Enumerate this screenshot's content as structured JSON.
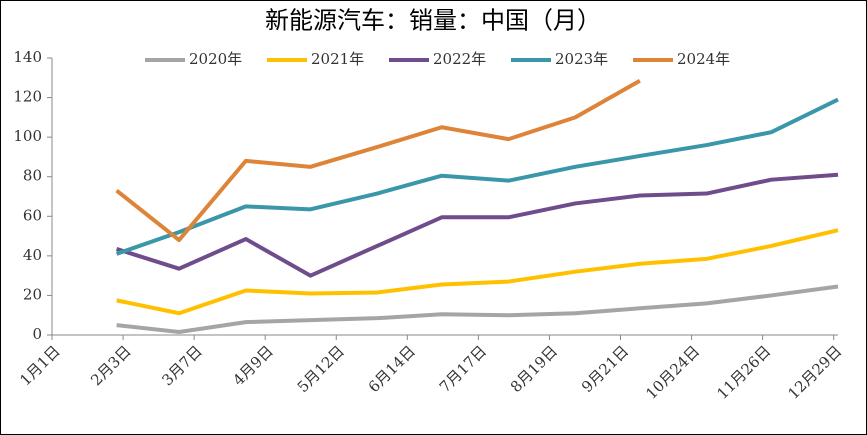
{
  "chart_data": {
    "type": "line",
    "title": "新能源汽车：销量：中国（月）",
    "x": [
      31,
      60,
      91,
      121,
      152,
      182,
      213,
      244,
      274,
      305,
      335,
      366
    ],
    "series": [
      {
        "name": "2020年",
        "color": "#a5a5a5",
        "values": [
          5,
          1.5,
          6.5,
          7.5,
          8.5,
          10.5,
          10,
          11,
          13.5,
          16,
          20,
          24.5
        ]
      },
      {
        "name": "2021年",
        "color": "#ffc000",
        "values": [
          17.5,
          11,
          22.5,
          21,
          21.5,
          25.5,
          27,
          32,
          36,
          38.5,
          45,
          53
        ]
      },
      {
        "name": "2022年",
        "color": "#6f4c8b",
        "values": [
          43.5,
          33.5,
          48.5,
          30,
          45,
          59.5,
          59.5,
          66.5,
          70.5,
          71.5,
          78.5,
          81
        ]
      },
      {
        "name": "2023年",
        "color": "#3a97a9",
        "values": [
          41,
          52,
          65,
          63.5,
          71.5,
          80.5,
          78,
          85,
          90.5,
          96,
          102.5,
          119
        ]
      },
      {
        "name": "2024年",
        "color": "#dd8439",
        "values": [
          73,
          48,
          88,
          85,
          95,
          105,
          99,
          110,
          128.5,
          null,
          null,
          null
        ]
      }
    ],
    "xlim": [
      1,
      366
    ],
    "xticks": [
      {
        "value": 1,
        "label": "1月1日"
      },
      {
        "value": 34,
        "label": "2月3日"
      },
      {
        "value": 67,
        "label": "3月7日"
      },
      {
        "value": 100,
        "label": "4月9日"
      },
      {
        "value": 133,
        "label": "5月12日"
      },
      {
        "value": 166,
        "label": "6月14日"
      },
      {
        "value": 199,
        "label": "7月17日"
      },
      {
        "value": 232,
        "label": "8月19日"
      },
      {
        "value": 265,
        "label": "9月21日"
      },
      {
        "value": 298,
        "label": "10月24日"
      },
      {
        "value": 331,
        "label": "11月26日"
      },
      {
        "value": 364,
        "label": "12月29日"
      }
    ],
    "ylim": [
      0,
      140
    ],
    "yticks": [
      0,
      20,
      40,
      60,
      80,
      100,
      120,
      140
    ],
    "grid": false,
    "legend": "top"
  }
}
